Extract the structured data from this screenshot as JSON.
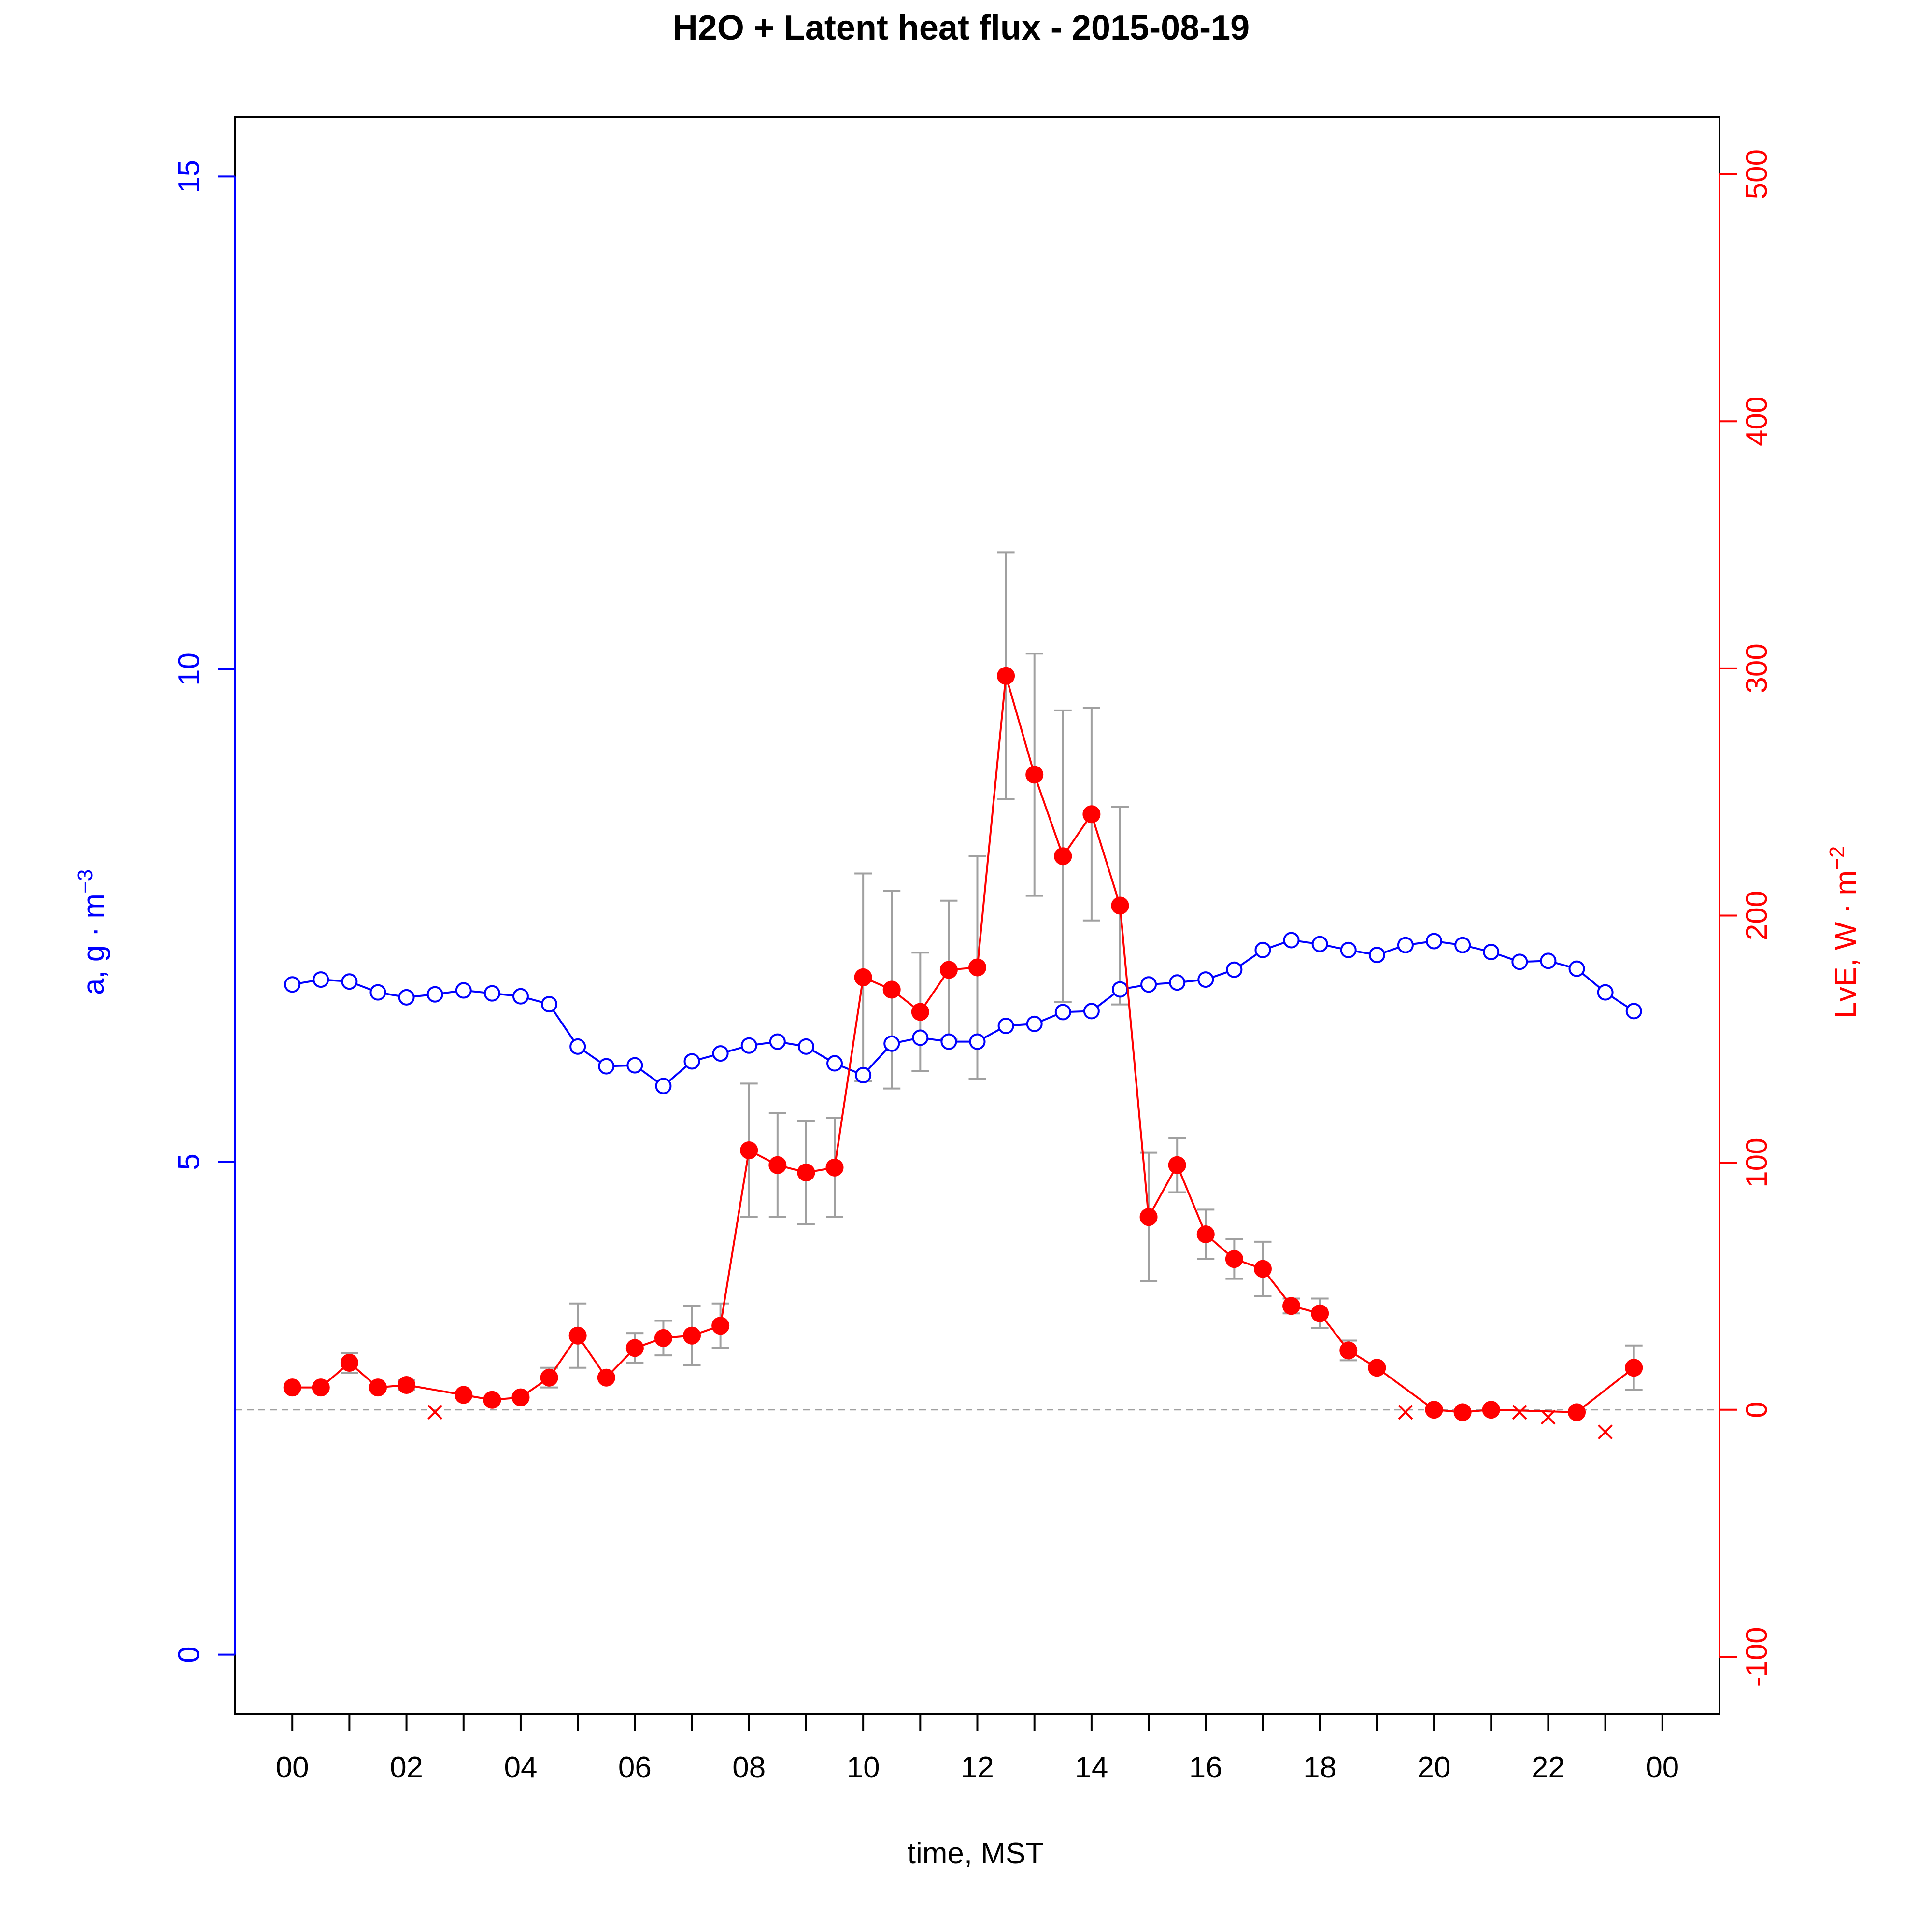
{
  "chart_data": {
    "type": "line",
    "title": "H2O + Latent heat flux -  2015-08-19",
    "xlabel": "time, MST",
    "x_ticks": [
      "00",
      "02",
      "04",
      "06",
      "08",
      "10",
      "12",
      "14",
      "16",
      "18",
      "20",
      "22",
      "00"
    ],
    "xlim": [
      -1,
      25
    ],
    "y_left": {
      "label": "a, g · m",
      "label_sup": "−3",
      "ticks": [
        0,
        5,
        10,
        15
      ],
      "lim": [
        -0.6,
        15.6
      ],
      "color": "#0000ff"
    },
    "y_right": {
      "label": "LvE, W · m",
      "label_sup": "−2",
      "ticks": [
        -100,
        0,
        100,
        200,
        300,
        400,
        500
      ],
      "lim": [
        -123,
        523
      ],
      "color": "#ff0000"
    },
    "colors": {
      "h2o": "#0000ff",
      "lve": "#ff0000",
      "errorbar": "#a0a0a0",
      "zero_line": "#a0a0a0",
      "axis": "#000000"
    },
    "series": [
      {
        "key": "h2o",
        "axis": "left",
        "marker": "open-circle",
        "x": [
          0,
          0.5,
          1,
          1.5,
          2,
          2.5,
          3,
          3.5,
          4,
          4.5,
          5,
          5.5,
          6,
          6.5,
          7,
          7.5,
          8,
          8.5,
          9,
          9.5,
          10,
          10.5,
          11,
          11.5,
          12,
          12.5,
          13,
          13.5,
          14,
          14.5,
          15,
          15.5,
          16,
          16.5,
          17,
          17.5,
          18,
          18.5,
          19,
          19.5,
          20,
          20.5,
          21,
          21.5,
          22,
          22.5,
          23,
          23.5
        ],
        "y": [
          6.8,
          6.85,
          6.83,
          6.72,
          6.67,
          6.7,
          6.74,
          6.71,
          6.68,
          6.6,
          6.17,
          5.97,
          5.98,
          5.77,
          6.02,
          6.1,
          6.18,
          6.22,
          6.17,
          6.0,
          5.88,
          6.2,
          6.26,
          6.22,
          6.22,
          6.38,
          6.4,
          6.52,
          6.53,
          6.75,
          6.8,
          6.82,
          6.85,
          6.95,
          7.15,
          7.25,
          7.21,
          7.15,
          7.1,
          7.2,
          7.24,
          7.2,
          7.13,
          7.03,
          7.04,
          6.96,
          6.72,
          6.53
        ]
      },
      {
        "key": "lve",
        "axis": "right",
        "marker": "filled-circle",
        "x": [
          0,
          0.5,
          1,
          1.5,
          2,
          3,
          3.5,
          4,
          4.5,
          5,
          5.5,
          6,
          6.5,
          7,
          7.5,
          8,
          8.5,
          9,
          9.5,
          10,
          10.5,
          11,
          11.5,
          12,
          12.5,
          13,
          13.5,
          14,
          14.5,
          15,
          15.5,
          16,
          16.5,
          17,
          17.5,
          18,
          18.5,
          19,
          20,
          20.5,
          21,
          22.5,
          23.5
        ],
        "y": [
          9,
          9,
          19,
          9,
          10,
          6,
          4,
          5,
          13,
          30,
          13,
          25,
          29,
          30,
          34,
          105,
          99,
          96,
          98,
          175,
          170,
          161,
          178,
          179,
          297,
          257,
          224,
          241,
          204,
          78,
          99,
          71,
          61,
          57,
          42,
          39,
          24,
          17,
          0,
          -1,
          0,
          -1,
          17
        ],
        "err": [
          0,
          0,
          4,
          0,
          2,
          0,
          0,
          0,
          4,
          13,
          0,
          6,
          7,
          12,
          9,
          27,
          21,
          21,
          20,
          42,
          40,
          24,
          28,
          45,
          50,
          49,
          59,
          43,
          40,
          26,
          11,
          10,
          8,
          11,
          3,
          6,
          4,
          0,
          0,
          0,
          0,
          0,
          9
        ]
      },
      {
        "key": "lve_flagged",
        "axis": "right",
        "marker": "cross",
        "x": [
          2.5,
          19.5,
          21.5,
          22,
          23
        ],
        "y": [
          -1,
          -1,
          -1,
          -3,
          -9
        ]
      }
    ]
  }
}
